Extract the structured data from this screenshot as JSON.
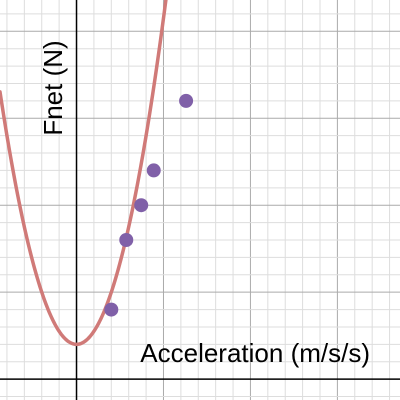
{
  "chart_data": {
    "type": "scatter",
    "title": "",
    "xlabel": "Acceleration (m/s/s)",
    "ylabel": "Fnet (N)",
    "xlim": [
      -2.2,
      9.3
    ],
    "ylim": [
      -0.6,
      10.9
    ],
    "grid": true,
    "points": [
      {
        "x": 1.0,
        "y": 2.0
      },
      {
        "x": 1.43,
        "y": 4.0
      },
      {
        "x": 1.86,
        "y": 5.0
      },
      {
        "x": 2.22,
        "y": 6.0
      },
      {
        "x": 3.15,
        "y": 8.0
      }
    ],
    "fit_curve": {
      "form": "quadratic",
      "vertex_x": 0.0,
      "vertex_y": 1.0,
      "a": 1.5,
      "x_range": [
        -2.2,
        3.2
      ]
    }
  },
  "colors": {
    "points": "#8060a8",
    "curve": "#d07a78",
    "grid_minor": "#dddddd",
    "grid_major": "#aaaaaa",
    "axis": "#000000"
  }
}
